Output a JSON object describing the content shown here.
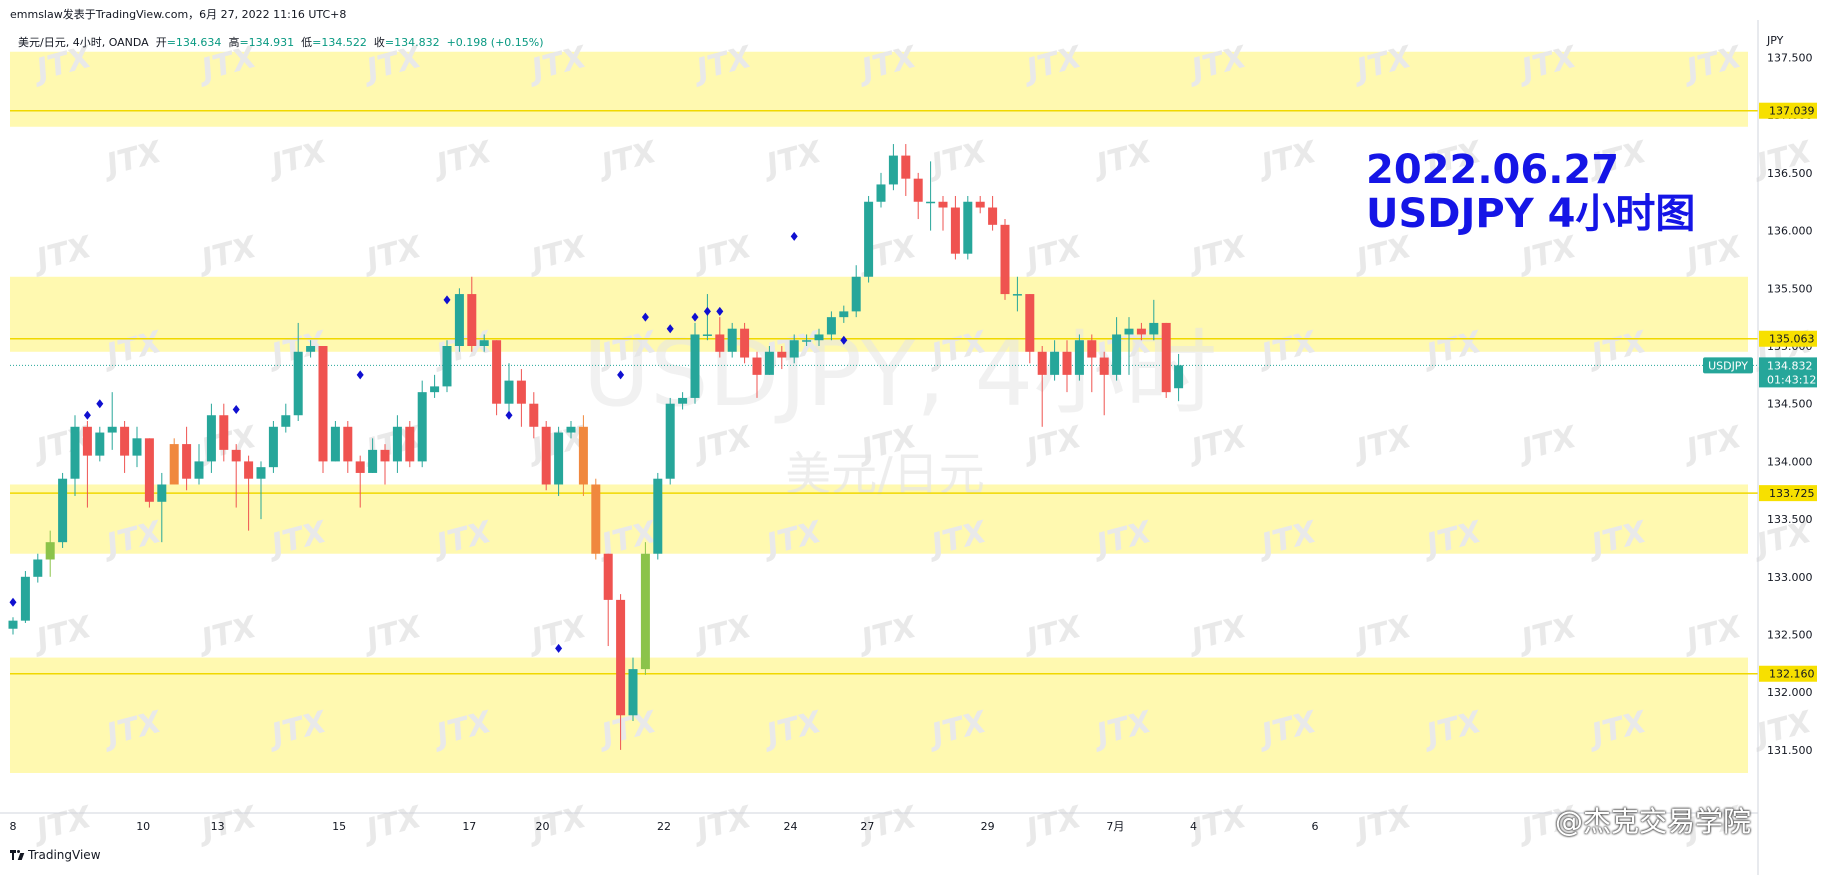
{
  "header": {
    "author_line": "emmslaw发表于TradingView.com，6月 27, 2022 11:16 UTC+8"
  },
  "symbol_bar": {
    "name": "美元/日元, 4小时, OANDA",
    "open_label": "开",
    "open": "=134.634",
    "high_label": "高",
    "high": "=134.931",
    "low_label": "低",
    "low": "=134.522",
    "close_label": "收",
    "close": "=134.832",
    "change": "+0.198 (+0.15%)"
  },
  "annotation": {
    "line1": "2022.06.27",
    "line2": "USDJPY 4小时图"
  },
  "watermark": {
    "symbol": "USDJPY, 4小时",
    "name": "美元/日元",
    "tile": "JTX"
  },
  "footer": {
    "brand": "TradingView",
    "overlay": "@杰克交易学院"
  },
  "colors": {
    "up": "#26a69a",
    "down": "#ef5350",
    "up_highlight": "#8bc34a",
    "down_highlight": "#f0883e",
    "zone_fill": "#fff9b0",
    "level_line": "#f0d800",
    "marker": "#1010d0",
    "price_tag": "#26a69a",
    "annotation": "#1515e6"
  },
  "chart_data": {
    "type": "candlestick",
    "symbol": "USDJPY",
    "currency_label": "JPY",
    "y_range": [
      131.2,
      137.7
    ],
    "y_ticks": [
      "137.500",
      "137.000",
      "136.500",
      "136.000",
      "135.500",
      "135.000",
      "134.500",
      "134.000",
      "133.500",
      "133.000",
      "132.500",
      "132.000",
      "131.500"
    ],
    "x_labels": [
      {
        "label": "8",
        "bar": 0
      },
      {
        "label": "10",
        "bar": 10.5
      },
      {
        "label": "13",
        "bar": 16.5
      },
      {
        "label": "15",
        "bar": 26.3
      },
      {
        "label": "17",
        "bar": 36.8
      },
      {
        "label": "20",
        "bar": 42.7
      },
      {
        "label": "22",
        "bar": 52.5
      },
      {
        "label": "24",
        "bar": 62.7
      },
      {
        "label": "27",
        "bar": 68.9
      },
      {
        "label": "29",
        "bar": 78.6
      },
      {
        "label": "7月",
        "bar": 88.9
      },
      {
        "label": "4",
        "bar": 95.2
      },
      {
        "label": "6",
        "bar": 105.0
      }
    ],
    "zones": [
      [
        136.9,
        137.55
      ],
      [
        134.95,
        135.6
      ],
      [
        133.2,
        133.8
      ],
      [
        131.3,
        132.3
      ]
    ],
    "levels": [
      {
        "label": "137.039",
        "value": 137.039
      },
      {
        "label": "135.063",
        "value": 135.063
      },
      {
        "label": "133.725",
        "value": 133.725
      },
      {
        "label": "132.160",
        "value": 132.16
      }
    ],
    "last_price": {
      "symbol": "USDJPY",
      "value": 134.832,
      "label": "134.832",
      "countdown": "01:43:12"
    },
    "candles": [
      [
        132.55,
        132.62,
        132.5,
        132.65
      ],
      [
        132.62,
        133.0,
        132.6,
        133.05
      ],
      [
        133.0,
        133.15,
        132.95,
        133.2
      ],
      [
        133.15,
        133.3,
        133.0,
        133.4
      ],
      [
        133.3,
        133.85,
        133.25,
        133.9
      ],
      [
        133.85,
        134.3,
        133.7,
        134.4
      ],
      [
        134.3,
        134.05,
        133.6,
        134.35
      ],
      [
        134.05,
        134.25,
        134.0,
        134.3
      ],
      [
        134.25,
        134.3,
        134.1,
        134.6
      ],
      [
        134.3,
        134.05,
        133.9,
        134.35
      ],
      [
        134.05,
        134.2,
        133.95,
        134.3
      ],
      [
        134.2,
        133.65,
        133.6,
        134.2
      ],
      [
        133.65,
        133.8,
        133.3,
        133.9
      ],
      [
        133.8,
        134.15,
        133.8,
        134.2
      ],
      [
        134.15,
        133.85,
        133.75,
        134.3
      ],
      [
        133.85,
        134.0,
        133.8,
        134.15
      ],
      [
        134.0,
        134.4,
        133.9,
        134.5
      ],
      [
        134.4,
        134.1,
        134.0,
        134.5
      ],
      [
        134.1,
        134.0,
        133.6,
        134.15
      ],
      [
        134.0,
        133.85,
        133.4,
        134.05
      ],
      [
        133.85,
        133.95,
        133.5,
        134.0
      ],
      [
        133.95,
        134.3,
        133.9,
        134.35
      ],
      [
        134.3,
        134.4,
        134.25,
        134.5
      ],
      [
        134.4,
        134.95,
        134.35,
        135.2
      ],
      [
        134.95,
        135.0,
        134.9,
        135.05
      ],
      [
        135.0,
        134.0,
        133.9,
        135.0
      ],
      [
        134.0,
        134.3,
        134.0,
        134.35
      ],
      [
        134.3,
        134.0,
        133.9,
        134.35
      ],
      [
        134.0,
        133.9,
        133.6,
        134.05
      ],
      [
        133.9,
        134.1,
        133.9,
        134.2
      ],
      [
        134.1,
        134.0,
        133.8,
        134.15
      ],
      [
        134.0,
        134.3,
        133.9,
        134.4
      ],
      [
        134.3,
        134.0,
        133.95,
        134.35
      ],
      [
        134.0,
        134.6,
        133.95,
        134.7
      ],
      [
        134.6,
        134.65,
        134.55,
        134.75
      ],
      [
        134.65,
        135.0,
        134.6,
        135.05
      ],
      [
        135.0,
        135.45,
        134.95,
        135.5
      ],
      [
        135.45,
        135.0,
        134.95,
        135.6
      ],
      [
        135.0,
        135.05,
        134.95,
        135.1
      ],
      [
        135.05,
        134.5,
        134.4,
        135.05
      ],
      [
        134.5,
        134.7,
        134.4,
        134.85
      ],
      [
        134.7,
        134.5,
        134.3,
        134.8
      ],
      [
        134.5,
        134.3,
        134.2,
        134.6
      ],
      [
        134.3,
        133.8,
        133.75,
        134.35
      ],
      [
        133.8,
        134.25,
        133.7,
        134.3
      ],
      [
        134.25,
        134.3,
        134.2,
        134.35
      ],
      [
        134.3,
        133.8,
        133.7,
        134.4
      ],
      [
        133.8,
        133.2,
        133.15,
        133.85
      ],
      [
        133.2,
        132.8,
        132.4,
        133.2
      ],
      [
        132.8,
        131.8,
        131.5,
        132.85
      ],
      [
        131.8,
        132.2,
        131.75,
        132.3
      ],
      [
        132.2,
        133.2,
        132.15,
        133.3
      ],
      [
        133.2,
        133.85,
        133.15,
        133.9
      ],
      [
        133.85,
        134.5,
        133.8,
        134.55
      ],
      [
        134.5,
        134.55,
        134.45,
        134.6
      ],
      [
        134.55,
        135.1,
        134.5,
        135.2
      ],
      [
        135.1,
        135.1,
        135.05,
        135.45
      ],
      [
        135.1,
        134.95,
        134.9,
        135.25
      ],
      [
        134.95,
        135.15,
        134.9,
        135.2
      ],
      [
        135.15,
        134.9,
        134.85,
        135.2
      ],
      [
        134.9,
        134.75,
        134.55,
        134.95
      ],
      [
        134.75,
        134.95,
        134.75,
        135.0
      ],
      [
        134.95,
        134.9,
        134.8,
        135.0
      ],
      [
        134.9,
        135.05,
        134.85,
        135.1
      ],
      [
        135.05,
        135.05,
        135.0,
        135.1
      ],
      [
        135.05,
        135.1,
        135.0,
        135.15
      ],
      [
        135.1,
        135.25,
        135.05,
        135.3
      ],
      [
        135.25,
        135.3,
        135.2,
        135.35
      ],
      [
        135.3,
        135.6,
        135.25,
        135.7
      ],
      [
        135.6,
        136.25,
        135.55,
        136.3
      ],
      [
        136.25,
        136.4,
        136.2,
        136.5
      ],
      [
        136.4,
        136.65,
        136.35,
        136.75
      ],
      [
        136.65,
        136.45,
        136.3,
        136.75
      ],
      [
        136.45,
        136.25,
        136.1,
        136.5
      ],
      [
        136.25,
        136.25,
        136.0,
        136.6
      ],
      [
        136.25,
        136.2,
        136.0,
        136.3
      ],
      [
        136.2,
        135.8,
        135.75,
        136.3
      ],
      [
        135.8,
        136.25,
        135.75,
        136.3
      ],
      [
        136.25,
        136.2,
        136.15,
        136.3
      ],
      [
        136.2,
        136.05,
        136.0,
        136.3
      ],
      [
        136.05,
        135.45,
        135.4,
        136.1
      ],
      [
        135.45,
        135.45,
        135.3,
        135.6
      ],
      [
        135.45,
        134.95,
        134.85,
        135.45
      ],
      [
        134.95,
        134.75,
        134.3,
        135.0
      ],
      [
        134.75,
        134.95,
        134.7,
        135.05
      ],
      [
        134.95,
        134.75,
        134.6,
        135.05
      ],
      [
        134.75,
        135.05,
        134.7,
        135.1
      ],
      [
        135.05,
        134.9,
        134.6,
        135.1
      ],
      [
        134.9,
        134.75,
        134.4,
        134.95
      ],
      [
        134.75,
        135.1,
        134.7,
        135.25
      ],
      [
        135.1,
        135.15,
        134.75,
        135.25
      ],
      [
        135.15,
        135.1,
        135.05,
        135.2
      ],
      [
        135.1,
        135.2,
        135.05,
        135.4
      ],
      [
        135.2,
        134.6,
        134.55,
        135.2
      ],
      [
        134.634,
        134.832,
        134.522,
        134.931
      ]
    ],
    "highlight_candles": [
      {
        "index": 3,
        "color": "up_highlight"
      },
      {
        "index": 13,
        "color": "down_highlight"
      },
      {
        "index": 46,
        "color": "down_highlight"
      },
      {
        "index": 47,
        "color": "down_highlight"
      },
      {
        "index": 51,
        "color": "up_highlight"
      }
    ],
    "markers": [
      {
        "bar": 0,
        "price": 132.78,
        "pos": "below"
      },
      {
        "bar": 6,
        "price": 134.4,
        "pos": "above"
      },
      {
        "bar": 7,
        "price": 134.5,
        "pos": "above"
      },
      {
        "bar": 18,
        "price": 134.45,
        "pos": "above"
      },
      {
        "bar": 28,
        "price": 134.75,
        "pos": "above"
      },
      {
        "bar": 35,
        "price": 135.4,
        "pos": "above"
      },
      {
        "bar": 40,
        "price": 134.4,
        "pos": "above"
      },
      {
        "bar": 44,
        "price": 132.38,
        "pos": "below"
      },
      {
        "bar": 49,
        "price": 134.75,
        "pos": "above"
      },
      {
        "bar": 51,
        "price": 135.25,
        "pos": "above"
      },
      {
        "bar": 53,
        "price": 135.15,
        "pos": "above"
      },
      {
        "bar": 55,
        "price": 135.25,
        "pos": "above"
      },
      {
        "bar": 56,
        "price": 135.3,
        "pos": "above"
      },
      {
        "bar": 57,
        "price": 135.3,
        "pos": "above"
      },
      {
        "bar": 63,
        "price": 135.95,
        "pos": "above"
      },
      {
        "bar": 67,
        "price": 135.05,
        "pos": "above"
      }
    ]
  }
}
